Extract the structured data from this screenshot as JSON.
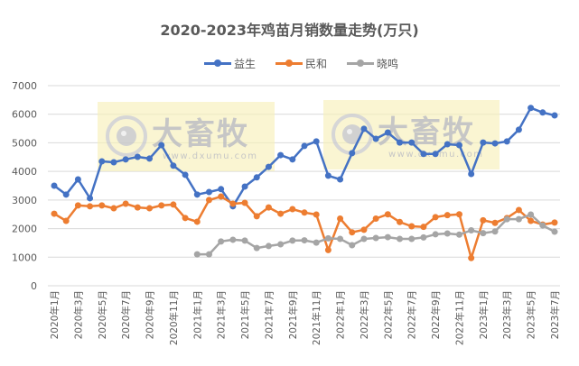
{
  "chart_data": {
    "type": "line",
    "title": "2020-2023年鸡苗月销数量走势(万只)",
    "xlabel": "",
    "ylabel": "",
    "ylim": [
      0,
      7000
    ],
    "yticks": [
      0,
      1000,
      2000,
      3000,
      4000,
      5000,
      6000,
      7000
    ],
    "grid": true,
    "legend_position": "top",
    "x": [
      "2020年1月",
      "2020年2月",
      "2020年3月",
      "2020年4月",
      "2020年5月",
      "2020年6月",
      "2020年7月",
      "2020年8月",
      "2020年9月",
      "2020年10月",
      "2020年11月",
      "2020年12月",
      "2021年1月",
      "2021年2月",
      "2021年3月",
      "2021年4月",
      "2021年5月",
      "2021年6月",
      "2021年7月",
      "2021年8月",
      "2021年9月",
      "2021年10月",
      "2021年11月",
      "2021年12月",
      "2022年1月",
      "2022年2月",
      "2022年3月",
      "2022年4月",
      "2022年5月",
      "2022年6月",
      "2022年7月",
      "2022年8月",
      "2022年9月",
      "2022年10月",
      "2022年11月",
      "2022年12月",
      "2023年1月",
      "2023年2月",
      "2023年3月",
      "2023年4月",
      "2023年5月",
      "2023年6月",
      "2023年7月"
    ],
    "x_tick_labels": [
      "2020年1月",
      "2020年3月",
      "2020年5月",
      "2020年7月",
      "2020年9月",
      "2020年11月",
      "2021年1月",
      "2021年3月",
      "2021年5月",
      "2021年7月",
      "2021年9月",
      "2021年11月",
      "2022年1月",
      "2022年3月",
      "2022年5月",
      "2022年7月",
      "2022年9月",
      "2022年11月",
      "2023年1月",
      "2023年3月",
      "2023年5月",
      "2023年7月"
    ],
    "series": [
      {
        "name": "益生",
        "color": "#4472C4",
        "values": [
          3500,
          3190,
          3720,
          3060,
          4350,
          4320,
          4420,
          4510,
          4450,
          4920,
          4200,
          3880,
          3190,
          3280,
          3380,
          2780,
          3470,
          3790,
          4160,
          4570,
          4420,
          4890,
          5050,
          3850,
          3720,
          4640,
          5490,
          5140,
          5360,
          5010,
          5010,
          4610,
          4610,
          4950,
          4920,
          3910,
          5010,
          4980,
          5050,
          5460,
          6220,
          6060,
          5960
        ]
      },
      {
        "name": "民和",
        "color": "#ED7D31",
        "values": [
          2520,
          2270,
          2810,
          2780,
          2810,
          2710,
          2870,
          2740,
          2710,
          2810,
          2840,
          2370,
          2240,
          3000,
          3120,
          2870,
          2900,
          2430,
          2740,
          2520,
          2680,
          2560,
          2490,
          1250,
          2350,
          1870,
          1960,
          2350,
          2500,
          2230,
          2080,
          2060,
          2400,
          2470,
          2500,
          970,
          2290,
          2200,
          2370,
          2650,
          2270,
          2140,
          2210
        ]
      },
      {
        "name": "晓鸣",
        "color": "#A5A5A5",
        "values": [
          null,
          null,
          null,
          null,
          null,
          null,
          null,
          null,
          null,
          null,
          null,
          null,
          1100,
          1100,
          1550,
          1610,
          1580,
          1320,
          1390,
          1450,
          1580,
          1590,
          1510,
          1660,
          1640,
          1420,
          1640,
          1670,
          1700,
          1640,
          1640,
          1690,
          1800,
          1830,
          1790,
          1940,
          1840,
          1900,
          2330,
          2330,
          2490,
          2110,
          1890
        ]
      }
    ]
  },
  "watermarks": [
    {
      "brand": "大畜牧",
      "url": "www.dxumu.com"
    },
    {
      "brand": "大畜牧",
      "url": "www.dxumu.com"
    }
  ]
}
